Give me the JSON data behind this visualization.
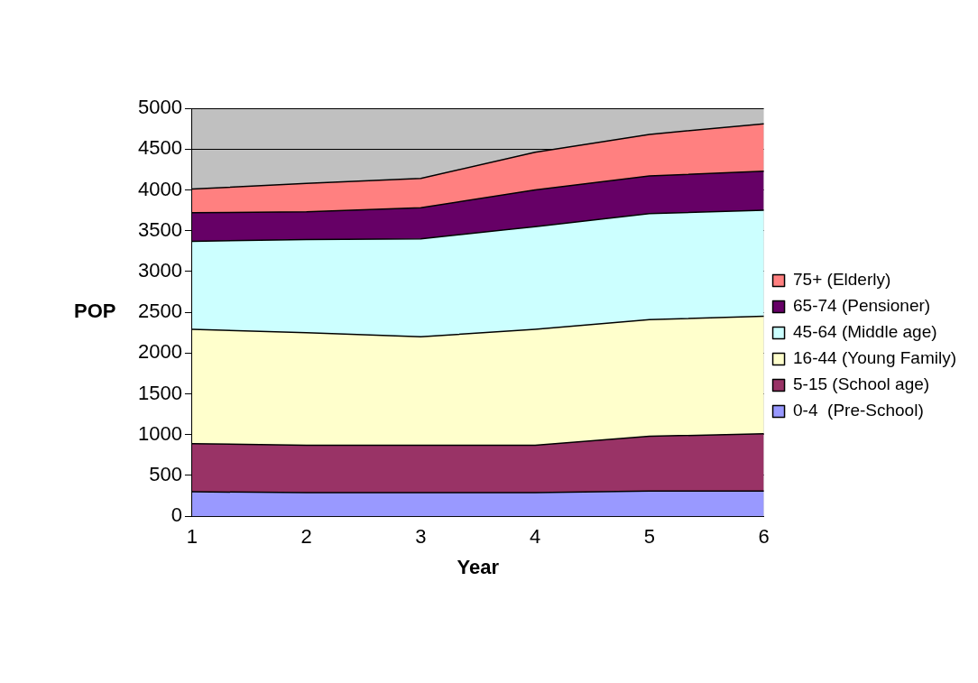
{
  "chart_data": {
    "type": "area",
    "stacked": true,
    "xlabel": "Year",
    "ylabel": "POP",
    "categories": [
      "1",
      "2",
      "3",
      "4",
      "5",
      "6"
    ],
    "ylim": [
      0,
      5000
    ],
    "yticks": [
      0,
      500,
      1000,
      1500,
      2000,
      2500,
      3000,
      3500,
      4000,
      4500,
      5000
    ],
    "grid": "y",
    "legend": "right",
    "series": [
      {
        "name": "0-4  (Pre-School)",
        "color": "#9999ff",
        "values": [
          300,
          290,
          290,
          290,
          310,
          310
        ]
      },
      {
        "name": "5-15 (School age)",
        "color": "#993366",
        "values": [
          590,
          580,
          580,
          580,
          670,
          700
        ]
      },
      {
        "name": "16-44 (Young Family)",
        "color": "#ffffcc",
        "values": [
          1400,
          1380,
          1330,
          1420,
          1430,
          1440
        ]
      },
      {
        "name": "45-64 (Middle age)",
        "color": "#ccffff",
        "values": [
          1080,
          1140,
          1200,
          1260,
          1300,
          1300
        ]
      },
      {
        "name": "65-74 (Pensioner)",
        "color": "#660066",
        "values": [
          350,
          340,
          380,
          450,
          460,
          480
        ]
      },
      {
        "name": "75+ (Elderly)",
        "color": "#ff8080",
        "values": [
          290,
          350,
          360,
          460,
          510,
          580
        ]
      }
    ]
  }
}
